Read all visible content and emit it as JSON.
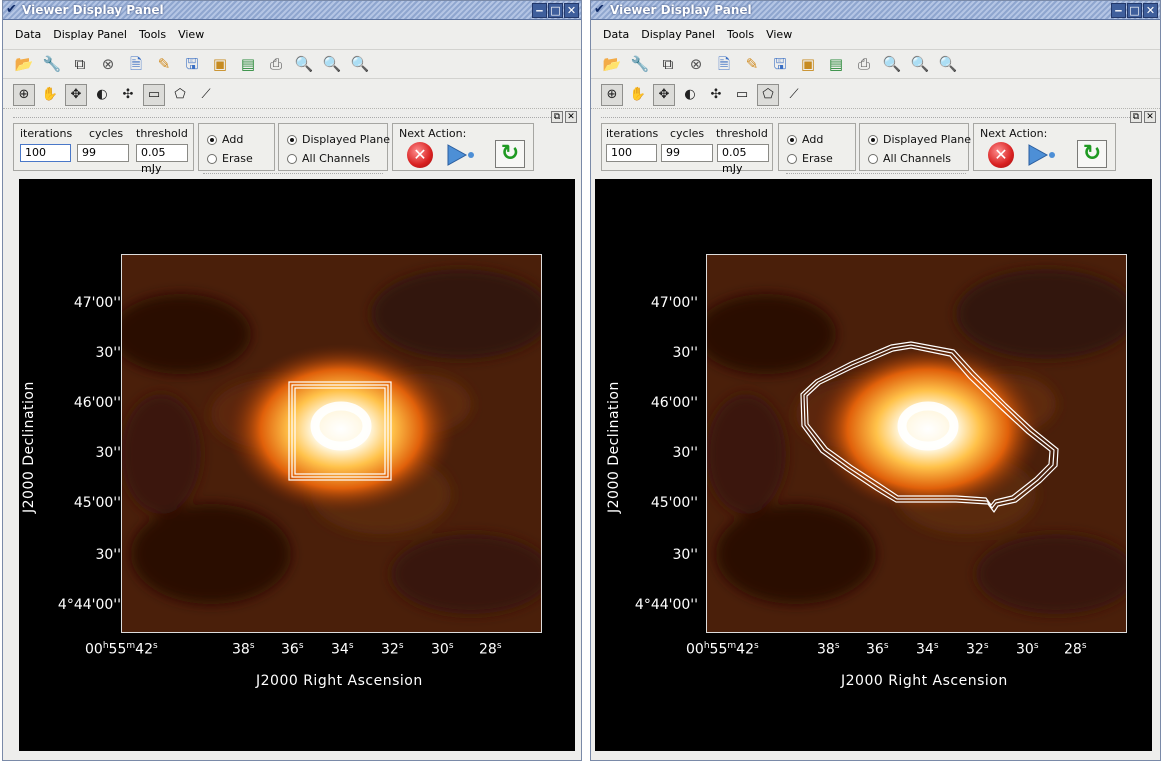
{
  "window_title": "Viewer Display Panel",
  "menu": [
    "Data",
    "Display Panel",
    "Tools",
    "View"
  ],
  "clean": {
    "labels": {
      "iterations": "iterations",
      "cycles": "cycles",
      "threshold": "threshold"
    },
    "iterations": "100",
    "cycles": "99",
    "threshold": "0.05 mJy",
    "add": "Add",
    "erase": "Erase",
    "displayed_plane": "Displayed Plane",
    "all_channels": "All Channels",
    "next_action": "Next Action:"
  },
  "axes": {
    "y_title": "J2000 Declination",
    "x_title": "J2000 Right Ascension",
    "y_ticks": [
      "47'00''",
      "30''",
      "46'00''",
      "30''",
      "45'00''",
      "30''",
      "4°44'00''"
    ],
    "x_ticks": [
      {
        "main": "00",
        "s1": "h",
        "m": "55",
        "s2": "m",
        "sec": "42",
        "s3": "s"
      },
      {
        "main": "38",
        "s3": "s"
      },
      {
        "main": "36",
        "s3": "s"
      },
      {
        "main": "34",
        "s3": "s"
      },
      {
        "main": "32",
        "s3": "s"
      },
      {
        "main": "30",
        "s3": "s"
      },
      {
        "main": "28",
        "s3": "s"
      }
    ]
  },
  "left_panel": {
    "mask": "box"
  },
  "right_panel": {
    "mask": "polygon"
  },
  "icons": {
    "toolbar1": [
      "open-folder-icon",
      "wrench-icon",
      "copy-panel-icon",
      "close-panel-icon",
      "export-icon",
      "preferences-icon",
      "save-icon",
      "save-image-icon",
      "print-setup-icon",
      "print-icon",
      "zoom-in-icon",
      "zoom-out-icon",
      "zoom-fit-icon"
    ],
    "toolbar2": [
      "zoom-tool-icon",
      "pan-tool-icon",
      "move-tool-icon",
      "contrast-tool-icon",
      "colormap-tool-icon",
      "rectangle-region-icon",
      "polygon-region-icon",
      "distance-tool-icon"
    ]
  }
}
